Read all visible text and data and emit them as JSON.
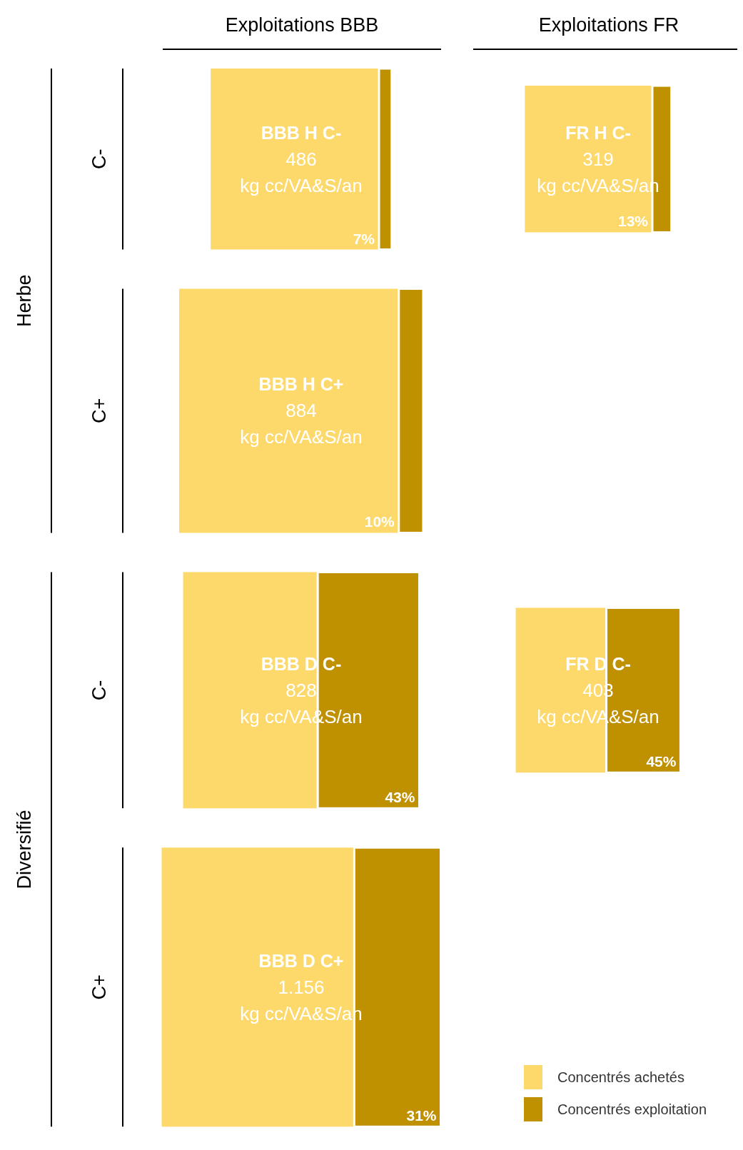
{
  "chart_data": {
    "type": "other",
    "categories": [
      "BBB H C-",
      "FR H C-",
      "BBB H C+",
      "BBB D C-",
      "FR D C-",
      "BBB D C+"
    ],
    "values": [
      486,
      319,
      884,
      828,
      403,
      1156
    ],
    "value_labels": [
      "486",
      "319",
      "884",
      "828",
      "403",
      "1.156"
    ],
    "ylabel": "kg cc/VA&S/an",
    "annotations": [
      "Exploitations BBB",
      "Exploitations FR",
      "Herbe",
      "Diversifié",
      "C-",
      "C+",
      "C-",
      "C+"
    ],
    "series": [
      {
        "name": "Concentrés achetés",
        "color": "#fdd96b",
        "values": [
          null,
          null,
          null,
          null,
          null,
          null
        ]
      },
      {
        "name": "Concentrés exploitation",
        "color": "#bf9000",
        "values": [
          7,
          13,
          10,
          43,
          45,
          31
        ],
        "value_labels": [
          "7%",
          "13%",
          "10%",
          "43%",
          "45%",
          "31%"
        ]
      }
    ],
    "legend": "bottom right"
  }
}
